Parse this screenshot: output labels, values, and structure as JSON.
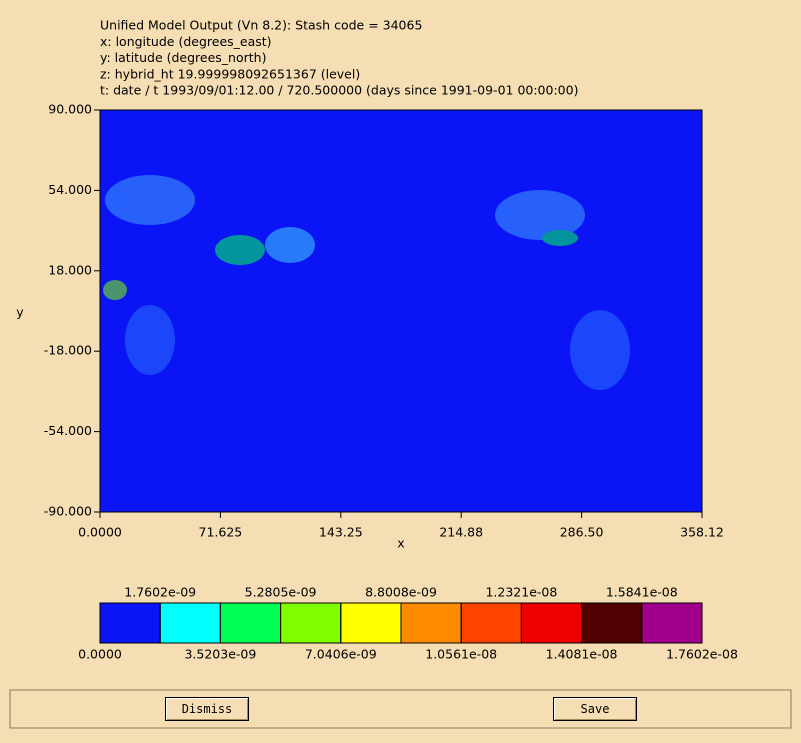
{
  "header": {
    "lines": [
      "Unified Model Output (Vn 8.2): Stash code = 34065",
      "x: longitude  (degrees_east)",
      "y: latitude  (degrees_north)",
      "z: hybrid_ht 19.999998092651367 (level)",
      "t: date / t 1993/09/01:12.00 / 720.500000 (days since 1991-09-01 00:00:00)"
    ]
  },
  "plot": {
    "xlabel": "x",
    "ylabel": "y",
    "field_color": "#0a14f5",
    "xlim": [
      0,
      358.12
    ],
    "ylim": [
      -90,
      90
    ],
    "xticks": [
      {
        "value": 0,
        "label": "0.0000"
      },
      {
        "value": 71.625,
        "label": "71.625"
      },
      {
        "value": 143.25,
        "label": "143.25"
      },
      {
        "value": 214.88,
        "label": "214.88"
      },
      {
        "value": 286.5,
        "label": "286.50"
      },
      {
        "value": 358.12,
        "label": "358.12"
      }
    ],
    "yticks": [
      {
        "value": 90,
        "label": "90.000"
      },
      {
        "value": 54,
        "label": "54.000"
      },
      {
        "value": 18,
        "label": "18.000"
      },
      {
        "value": -18,
        "label": "-18.000"
      },
      {
        "value": -54,
        "label": "-54.000"
      },
      {
        "value": -90,
        "label": "-90.000"
      }
    ]
  },
  "colorbar": {
    "lim": [
      0,
      1.7602e-08
    ],
    "ticks": [
      {
        "value": 0,
        "label": "0.0000"
      },
      {
        "value": 1.7602e-09,
        "label": "1.7602e-09"
      },
      {
        "value": 3.5203e-09,
        "label": "3.5203e-09"
      },
      {
        "value": 5.2805e-09,
        "label": "5.2805e-09"
      },
      {
        "value": 7.0406e-09,
        "label": "7.0406e-09"
      },
      {
        "value": 8.8008e-09,
        "label": "8.8008e-09"
      },
      {
        "value": 1.0561e-08,
        "label": "1.0561e-08"
      },
      {
        "value": 1.2321e-08,
        "label": "1.2321e-08"
      },
      {
        "value": 1.4081e-08,
        "label": "1.4081e-08"
      },
      {
        "value": 1.5841e-08,
        "label": "1.5841e-08"
      },
      {
        "value": 1.7602e-08,
        "label": "1.7602e-08"
      }
    ],
    "colors": [
      "#0a14f5",
      "#00ffff",
      "#00ff55",
      "#80ff00",
      "#ffff00",
      "#ff8c00",
      "#ff4400",
      "#ee0000",
      "#500000",
      "#a0008c"
    ]
  },
  "buttons": [
    "Dismiss",
    "Save"
  ]
}
